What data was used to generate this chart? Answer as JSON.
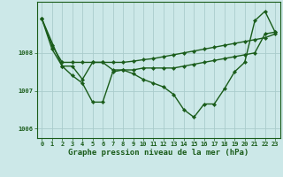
{
  "background_color": "#cce8e8",
  "grid_color": "#aacccc",
  "line_color": "#1a5c1a",
  "marker_color": "#1a5c1a",
  "title": "Graphe pression niveau de la mer (hPa)",
  "xlim": [
    -0.5,
    23.5
  ],
  "ylim": [
    1005.75,
    1009.35
  ],
  "yticks": [
    1006,
    1007,
    1008
  ],
  "xticks": [
    0,
    1,
    2,
    3,
    4,
    5,
    6,
    7,
    8,
    9,
    10,
    11,
    12,
    13,
    14,
    15,
    16,
    17,
    18,
    19,
    20,
    21,
    22,
    23
  ],
  "series": [
    {
      "x": [
        0,
        1,
        2,
        3,
        4,
        5,
        6,
        7,
        8,
        9,
        10,
        11,
        12,
        13,
        14,
        15,
        16,
        17,
        18,
        19,
        20,
        21,
        22,
        23
      ],
      "y": [
        1008.9,
        1008.2,
        1007.75,
        1007.75,
        1007.75,
        1007.75,
        1007.75,
        1007.75,
        1007.75,
        1007.78,
        1007.82,
        1007.85,
        1007.9,
        1007.95,
        1008.0,
        1008.05,
        1008.1,
        1008.15,
        1008.2,
        1008.25,
        1008.3,
        1008.35,
        1008.4,
        1008.5
      ]
    },
    {
      "x": [
        0,
        1,
        2,
        3,
        4,
        5,
        6,
        7,
        8,
        9,
        10,
        11,
        12,
        13,
        14,
        15,
        16,
        17,
        18,
        19,
        20,
        21,
        22,
        23
      ],
      "y": [
        1008.9,
        1008.1,
        1007.65,
        1007.4,
        1007.2,
        1006.7,
        1006.7,
        1007.5,
        1007.55,
        1007.45,
        1007.3,
        1007.2,
        1007.1,
        1006.9,
        1006.5,
        1006.3,
        1006.65,
        1006.65,
        1007.05,
        1007.5,
        1007.75,
        1008.85,
        1009.1,
        1008.55
      ]
    },
    {
      "x": [
        0,
        2,
        3,
        4,
        5,
        6,
        7,
        8,
        9,
        10,
        11,
        12,
        13,
        14,
        15,
        16,
        17,
        18,
        19,
        20,
        21,
        22,
        23
      ],
      "y": [
        1008.9,
        1007.65,
        1007.65,
        1007.3,
        1007.75,
        1007.75,
        1007.55,
        1007.55,
        1007.55,
        1007.6,
        1007.6,
        1007.6,
        1007.6,
        1007.65,
        1007.7,
        1007.75,
        1007.8,
        1007.85,
        1007.9,
        1007.95,
        1008.0,
        1008.5,
        1008.55
      ]
    }
  ],
  "title_fontsize": 6.5,
  "tick_fontsize": 5.0,
  "linewidth": 1.0,
  "markersize": 2.2
}
